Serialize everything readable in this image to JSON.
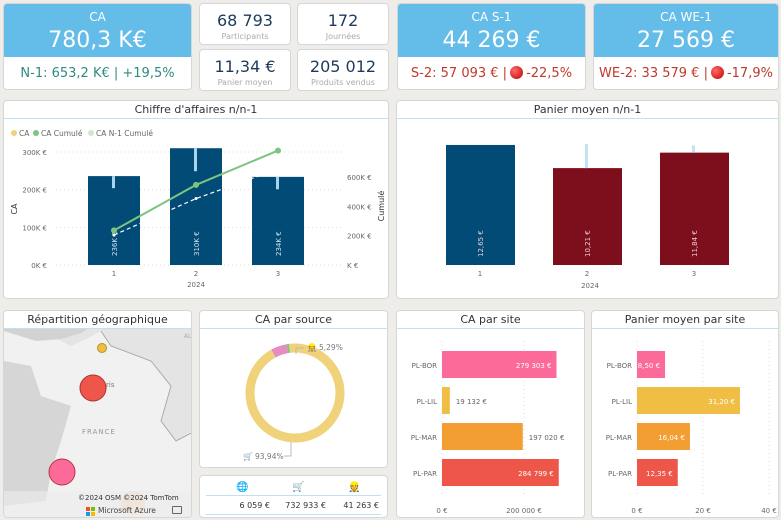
{
  "kpi_ca": {
    "title": "CA",
    "value": "780,3 K€",
    "sub": "N-1: 653,2 K€ | +19,5%"
  },
  "stats": [
    {
      "value": "68 793",
      "label": "Participants"
    },
    {
      "value": "172",
      "label": "Journées"
    },
    {
      "value": "11,34 €",
      "label": "Panier moyen"
    },
    {
      "value": "205 012",
      "label": "Produits vendus"
    }
  ],
  "kpi_s1": {
    "title": "CA S-1",
    "value": "44 269 €",
    "sub_prefix": "S-2: 57 093 € |",
    "sub_delta": "-22,5%",
    "status": "red-dot"
  },
  "kpi_we1": {
    "title": "CA WE-1",
    "value": "27 569 €",
    "sub_prefix": "WE-2: 33 579 € |",
    "sub_delta": "-17,9%",
    "status": "red-dot"
  },
  "colors": {
    "accent": "#64BCE8",
    "bar_blue": "#024B77",
    "bar_red": "#7D0E1C",
    "positive": "#2E8B82",
    "negative": "#C0392B"
  },
  "chart_data": [
    {
      "type": "bar+line",
      "title": "Chiffre d'affaires n/n-1",
      "legend": [
        "CA",
        "CA Cumulé",
        "CA N-1 Cumulé"
      ],
      "categories": [
        "1",
        "2",
        "3"
      ],
      "xgroup": "2024",
      "ylabel": "CA",
      "y2label": "Cumulé",
      "yticks": [
        "0K €",
        "100K €",
        "200K €",
        "300K €"
      ],
      "y2ticks": [
        "K €",
        "200K €",
        "400K €",
        "600K €"
      ],
      "ylim": [
        0,
        300
      ],
      "y2lim": [
        0,
        600
      ],
      "bars": {
        "name": "CA",
        "values": [
          236,
          310,
          234
        ],
        "labels": [
          "236K €",
          "310K €",
          "234K €"
        ],
        "n1_values": [
          204,
          249,
          201
        ]
      },
      "series": [
        {
          "name": "CA Cumulé",
          "values": [
            236,
            546,
            780
          ]
        },
        {
          "name": "CA N-1 Cumulé",
          "values": [
            204,
            453,
            654
          ]
        }
      ]
    },
    {
      "type": "bar",
      "title": "Panier moyen n/n-1",
      "categories": [
        "1",
        "2",
        "3"
      ],
      "xgroup": "2024",
      "values": [
        12.65,
        10.21,
        11.84
      ],
      "labels": [
        "12,65 €",
        "10,21 €",
        "11,84 €"
      ],
      "n1_values": [
        12.65,
        12.75,
        12.6
      ],
      "bar_colors": [
        "#024B77",
        "#7D0E1C",
        "#7D0E1C"
      ]
    },
    {
      "type": "pie",
      "title": "CA par source",
      "slices": [
        {
          "icon": "cart-icon",
          "value": 93.94,
          "label": "93,94%",
          "color": "#F0D27A"
        },
        {
          "icon": "person-icon",
          "value": 5.29,
          "label": "5,29%",
          "color": "#E58DC0"
        },
        {
          "icon": "globe-icon",
          "value": 0.77,
          "color": "#7CC47F"
        }
      ]
    },
    {
      "type": "bar",
      "orientation": "horizontal",
      "title": "CA par site",
      "categories": [
        "PL-BOR",
        "PL-LIL",
        "PL-MAR",
        "PL-PAR"
      ],
      "values": [
        279303,
        19132,
        197020,
        284799
      ],
      "labels": [
        "279 303 €",
        "19 132 €",
        "197 020 €",
        "284 799 €"
      ],
      "xticks": [
        "0 €",
        "200 000 €"
      ],
      "bar_colors": [
        "#FC6A9A",
        "#F0BE45",
        "#F29E32",
        "#EE5649"
      ]
    },
    {
      "type": "bar",
      "orientation": "horizontal",
      "title": "Panier moyen par site",
      "categories": [
        "PL-BOR",
        "PL-LIL",
        "PL-MAR",
        "PL-PAR"
      ],
      "values": [
        8.5,
        31.2,
        16.04,
        12.35
      ],
      "labels": [
        "8,50 €",
        "31,20 €",
        "16,04 €",
        "12,35 €"
      ],
      "xticks": [
        "0 €",
        "20 €",
        "40 €"
      ],
      "bar_colors": [
        "#FC6A9A",
        "#F0BE45",
        "#F29E32",
        "#EE5649"
      ]
    }
  ],
  "map": {
    "title": "Répartition géographique",
    "labels": {
      "country": "FRANCE",
      "city": "ris",
      "edge": "AL"
    },
    "attribution": "©2024 OSM ©2024 TomTom",
    "provider": "Microsoft Azure"
  },
  "source_table": {
    "columns": [
      {
        "icon": "globe-icon",
        "value": "6 059 €"
      },
      {
        "icon": "cart-icon",
        "value": "732 933 €"
      },
      {
        "icon": "person-icon",
        "value": "41 263 €"
      }
    ]
  }
}
